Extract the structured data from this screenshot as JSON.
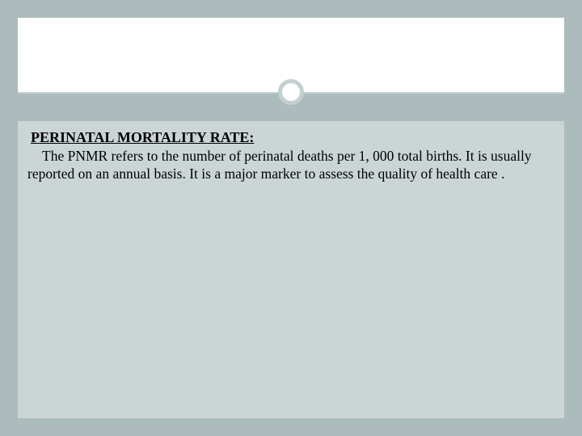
{
  "slide": {
    "background_color": "#acbbbb",
    "panel_color": "#cbd5d5",
    "header_color": "#ffffff",
    "divider_color": "#c4cfcf",
    "circle_border_color": "#c4cfcf",
    "heading": "PERINATAL MORTALITY RATE:",
    "body": "The PNMR refers to the number of perinatal deaths per 1, 000 total births. It is usually reported on an annual basis. It is a major marker to assess the quality of health care .",
    "heading_fontsize": 18,
    "body_fontsize": 17.5,
    "font_family": "Georgia, serif"
  }
}
